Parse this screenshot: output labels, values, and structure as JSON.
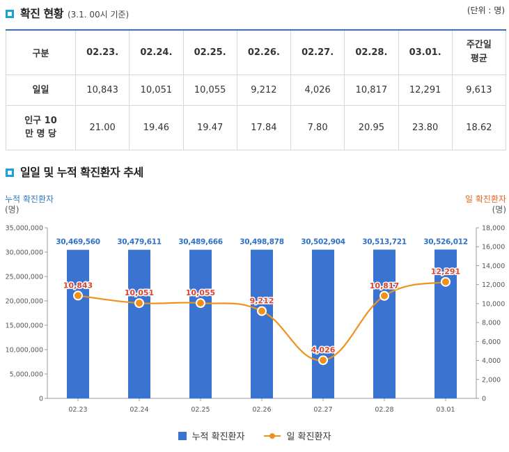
{
  "section1": {
    "title": "확진 현황",
    "note": "(3.1. 00시 기준)",
    "unit": "(단위 : 명)"
  },
  "table": {
    "header": [
      "구분",
      "02.23.",
      "02.24.",
      "02.25.",
      "02.26.",
      "02.27.",
      "02.28.",
      "03.01.",
      "주간일 평균"
    ],
    "rows": [
      {
        "label": "일일",
        "cells": [
          "10,843",
          "10,051",
          "10,055",
          "9,212",
          "4,026",
          "10,817",
          "12,291",
          "9,613"
        ]
      },
      {
        "label": "인구 10만 명 당",
        "cells": [
          "21.00",
          "19.46",
          "19.47",
          "17.84",
          "7.80",
          "20.95",
          "23.80",
          "18.62"
        ]
      }
    ]
  },
  "section2": {
    "title": "일일 및 누적 확진환자 추세"
  },
  "colors": {
    "bar": "#3a73d0",
    "line": "#f0921a",
    "point_label": "#e0432d",
    "bar_label": "#2e6fc8",
    "accent": "#1aa0d8"
  },
  "chart_data": {
    "type": "bar",
    "categories": [
      "02.23",
      "02.24",
      "02.25",
      "02.26",
      "02.27",
      "02.28",
      "03.01"
    ],
    "series": [
      {
        "name": "누적 확진환자",
        "type": "bar",
        "axis": "left",
        "values": [
          30469560,
          30479611,
          30489666,
          30498878,
          30502904,
          30513721,
          30526012
        ],
        "labels": [
          "30,469,560",
          "30,479,611",
          "30,489,666",
          "30,498,878",
          "30,502,904",
          "30,513,721",
          "30,526,012"
        ]
      },
      {
        "name": "일 확진환자",
        "type": "line",
        "axis": "right",
        "values": [
          10843,
          10051,
          10055,
          9212,
          4026,
          10817,
          12291
        ],
        "labels": [
          "10,843",
          "10,051",
          "10,055",
          "9,212",
          "4,026",
          "10,817",
          "12,291"
        ]
      }
    ],
    "y_left": {
      "title": "누적 확진환자",
      "unit": "(명)",
      "range": [
        0,
        35000000
      ],
      "ticks": [
        "0",
        "5,000,000",
        "10,000,000",
        "15,000,000",
        "20,000,000",
        "25,000,000",
        "30,000,000",
        "35,000,000"
      ]
    },
    "y_right": {
      "title": "일 확진환자",
      "unit": "(명)",
      "range": [
        0,
        18000
      ],
      "ticks": [
        "0",
        "2,000",
        "4,000",
        "6,000",
        "8,000",
        "10,000",
        "12,000",
        "14,000",
        "16,000",
        "18,000"
      ]
    },
    "legend": [
      "누적 확진환자",
      "일 확진환자"
    ],
    "legend_position": "bottom"
  }
}
